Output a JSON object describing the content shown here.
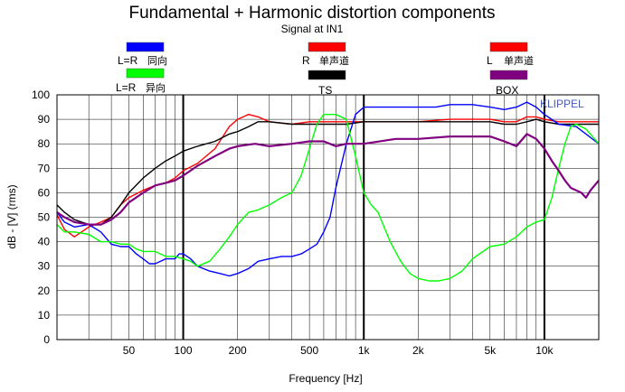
{
  "chart_data": {
    "type": "line",
    "title": "Fundamental + Harmonic distortion components",
    "subtitle": "Signal at IN1",
    "watermark": "KLIPPEL",
    "xlabel": "Frequency [Hz]",
    "ylabel": "dB - [V] (rms)",
    "xscale": "log",
    "xlim": [
      20,
      20000
    ],
    "ylim": [
      0,
      100
    ],
    "grid": true,
    "x_ticks": [
      {
        "value": 50,
        "label": "50"
      },
      {
        "value": 100,
        "label": "100"
      },
      {
        "value": 200,
        "label": "200"
      },
      {
        "value": 500,
        "label": "500"
      },
      {
        "value": 1000,
        "label": "1k"
      },
      {
        "value": 2000,
        "label": "2k"
      },
      {
        "value": 5000,
        "label": "5k"
      },
      {
        "value": 10000,
        "label": "10k"
      }
    ],
    "y_ticks": [
      0,
      10,
      20,
      30,
      40,
      50,
      60,
      70,
      80,
      90,
      100
    ],
    "legend": [
      {
        "label": "L=R",
        "extra": "同向",
        "color": "#0000ff"
      },
      {
        "label": "L=R",
        "extra": "异向",
        "color": "#00ff00"
      },
      {
        "label": "R",
        "extra": "单声道",
        "color": "#ff0000"
      },
      {
        "label": "TS",
        "extra": "",
        "color": "#000000"
      },
      {
        "label": "L",
        "extra": "单声道",
        "color": "#ff0000"
      },
      {
        "label": "BOX",
        "extra": "",
        "color": "#800080"
      }
    ],
    "series": [
      {
        "color": "#ff0000",
        "points": [
          [
            20,
            51
          ],
          [
            22,
            45
          ],
          [
            25,
            42
          ],
          [
            30,
            46
          ],
          [
            35,
            48
          ],
          [
            40,
            50
          ],
          [
            45,
            55
          ],
          [
            50,
            58
          ],
          [
            60,
            61
          ],
          [
            70,
            63
          ],
          [
            80,
            64
          ],
          [
            90,
            66
          ],
          [
            100,
            69
          ],
          [
            120,
            72
          ],
          [
            150,
            78
          ],
          [
            180,
            87
          ],
          [
            200,
            90
          ],
          [
            230,
            92
          ],
          [
            260,
            91
          ],
          [
            300,
            89
          ],
          [
            400,
            88
          ],
          [
            500,
            89
          ],
          [
            600,
            89
          ],
          [
            700,
            89
          ],
          [
            800,
            89
          ],
          [
            1000,
            89
          ],
          [
            1500,
            89
          ],
          [
            2000,
            89
          ],
          [
            3000,
            90
          ],
          [
            4000,
            90
          ],
          [
            5000,
            90
          ],
          [
            6000,
            89
          ],
          [
            7000,
            89
          ],
          [
            8000,
            91
          ],
          [
            9000,
            91
          ],
          [
            10000,
            90
          ],
          [
            12000,
            89
          ],
          [
            15000,
            89
          ],
          [
            20000,
            89
          ]
        ]
      },
      {
        "color": "#000000",
        "points": [
          [
            20,
            55
          ],
          [
            22,
            52
          ],
          [
            25,
            49
          ],
          [
            30,
            47
          ],
          [
            35,
            47
          ],
          [
            40,
            50
          ],
          [
            45,
            55
          ],
          [
            50,
            60
          ],
          [
            60,
            66
          ],
          [
            70,
            70
          ],
          [
            80,
            73
          ],
          [
            90,
            75
          ],
          [
            100,
            77
          ],
          [
            120,
            79
          ],
          [
            150,
            81
          ],
          [
            180,
            84
          ],
          [
            200,
            85
          ],
          [
            230,
            87
          ],
          [
            260,
            89
          ],
          [
            300,
            89
          ],
          [
            400,
            88
          ],
          [
            500,
            88
          ],
          [
            600,
            88
          ],
          [
            700,
            88
          ],
          [
            800,
            88
          ],
          [
            1000,
            89
          ],
          [
            1500,
            89
          ],
          [
            2000,
            89
          ],
          [
            3000,
            89
          ],
          [
            4000,
            89
          ],
          [
            5000,
            89
          ],
          [
            6000,
            88
          ],
          [
            7000,
            88
          ],
          [
            8000,
            89
          ],
          [
            9000,
            90
          ],
          [
            10000,
            89
          ],
          [
            12000,
            88
          ],
          [
            15000,
            88
          ],
          [
            20000,
            88
          ]
        ]
      },
      {
        "color": "#0000ff",
        "points": [
          [
            20,
            52
          ],
          [
            22,
            48
          ],
          [
            25,
            46
          ],
          [
            30,
            47
          ],
          [
            35,
            44
          ],
          [
            40,
            39
          ],
          [
            45,
            38
          ],
          [
            50,
            38
          ],
          [
            55,
            35
          ],
          [
            60,
            33
          ],
          [
            65,
            31
          ],
          [
            70,
            31
          ],
          [
            80,
            33
          ],
          [
            90,
            33
          ],
          [
            95,
            35
          ],
          [
            100,
            35
          ],
          [
            110,
            33
          ],
          [
            120,
            30
          ],
          [
            140,
            28
          ],
          [
            160,
            27
          ],
          [
            180,
            26
          ],
          [
            200,
            27
          ],
          [
            230,
            29
          ],
          [
            260,
            32
          ],
          [
            300,
            33
          ],
          [
            350,
            34
          ],
          [
            400,
            34
          ],
          [
            450,
            35
          ],
          [
            500,
            37
          ],
          [
            550,
            39
          ],
          [
            600,
            44
          ],
          [
            650,
            50
          ],
          [
            700,
            62
          ],
          [
            800,
            80
          ],
          [
            900,
            92
          ],
          [
            1000,
            95
          ],
          [
            1200,
            95
          ],
          [
            1500,
            95
          ],
          [
            2000,
            95
          ],
          [
            2500,
            95
          ],
          [
            3000,
            96
          ],
          [
            4000,
            96
          ],
          [
            5000,
            95
          ],
          [
            6000,
            94
          ],
          [
            7000,
            95
          ],
          [
            8000,
            97
          ],
          [
            9000,
            95
          ],
          [
            10000,
            92
          ],
          [
            12000,
            88
          ],
          [
            15000,
            87
          ],
          [
            20000,
            80
          ]
        ]
      },
      {
        "color": "#00ff00",
        "points": [
          [
            20,
            47
          ],
          [
            22,
            44
          ],
          [
            25,
            44
          ],
          [
            30,
            43
          ],
          [
            35,
            40
          ],
          [
            40,
            40
          ],
          [
            45,
            39
          ],
          [
            50,
            39
          ],
          [
            55,
            37
          ],
          [
            60,
            36
          ],
          [
            70,
            36
          ],
          [
            80,
            34
          ],
          [
            90,
            34
          ],
          [
            100,
            33
          ],
          [
            110,
            32
          ],
          [
            120,
            30
          ],
          [
            140,
            32
          ],
          [
            160,
            37
          ],
          [
            180,
            42
          ],
          [
            200,
            47
          ],
          [
            230,
            52
          ],
          [
            260,
            53
          ],
          [
            300,
            55
          ],
          [
            350,
            58
          ],
          [
            400,
            60
          ],
          [
            450,
            67
          ],
          [
            500,
            78
          ],
          [
            550,
            88
          ],
          [
            600,
            92
          ],
          [
            700,
            92
          ],
          [
            800,
            90
          ],
          [
            900,
            75
          ],
          [
            1000,
            60
          ],
          [
            1100,
            55
          ],
          [
            1200,
            52
          ],
          [
            1400,
            40
          ],
          [
            1600,
            32
          ],
          [
            1800,
            27
          ],
          [
            2000,
            25
          ],
          [
            2300,
            24
          ],
          [
            2600,
            24
          ],
          [
            3000,
            25
          ],
          [
            3500,
            28
          ],
          [
            4000,
            33
          ],
          [
            5000,
            38
          ],
          [
            6000,
            39
          ],
          [
            7000,
            42
          ],
          [
            8000,
            46
          ],
          [
            9000,
            48
          ],
          [
            10000,
            49
          ],
          [
            11000,
            58
          ],
          [
            12000,
            70
          ],
          [
            13000,
            80
          ],
          [
            14000,
            87
          ],
          [
            15000,
            88
          ],
          [
            17000,
            86
          ],
          [
            20000,
            80
          ]
        ]
      },
      {
        "color": "#800080",
        "points": [
          [
            20,
            52
          ],
          [
            22,
            50
          ],
          [
            25,
            48
          ],
          [
            30,
            47
          ],
          [
            35,
            47
          ],
          [
            40,
            49
          ],
          [
            45,
            52
          ],
          [
            50,
            56
          ],
          [
            60,
            60
          ],
          [
            70,
            63
          ],
          [
            80,
            64
          ],
          [
            90,
            65
          ],
          [
            100,
            67
          ],
          [
            120,
            71
          ],
          [
            150,
            75
          ],
          [
            180,
            78
          ],
          [
            200,
            79
          ],
          [
            250,
            80
          ],
          [
            300,
            79
          ],
          [
            400,
            80
          ],
          [
            500,
            81
          ],
          [
            600,
            81
          ],
          [
            700,
            79
          ],
          [
            800,
            80
          ],
          [
            1000,
            80
          ],
          [
            1500,
            82
          ],
          [
            2000,
            82
          ],
          [
            3000,
            83
          ],
          [
            4000,
            83
          ],
          [
            5000,
            83
          ],
          [
            6000,
            81
          ],
          [
            7000,
            79
          ],
          [
            8000,
            84
          ],
          [
            9000,
            82
          ],
          [
            10000,
            78
          ],
          [
            11000,
            73
          ],
          [
            12000,
            69
          ],
          [
            13000,
            65
          ],
          [
            14000,
            62
          ],
          [
            16000,
            60
          ],
          [
            17000,
            58
          ],
          [
            18000,
            61
          ],
          [
            20000,
            65
          ]
        ]
      }
    ]
  }
}
